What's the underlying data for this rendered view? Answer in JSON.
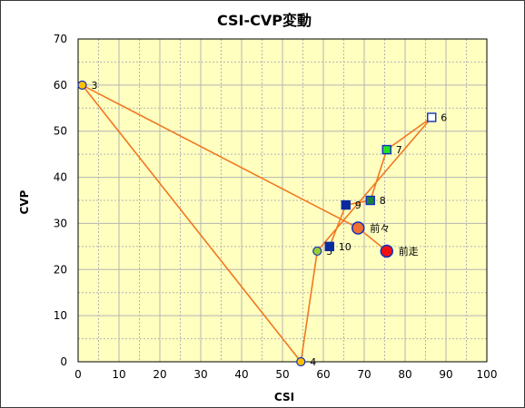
{
  "chart_data": {
    "type": "scatter",
    "title": "CSI-CVP変動",
    "xlabel": "CSI",
    "ylabel": "CVP",
    "xlim": [
      0,
      100
    ],
    "ylim": [
      0,
      70
    ],
    "xticks": [
      0,
      10,
      20,
      30,
      40,
      50,
      60,
      70,
      80,
      90,
      100
    ],
    "yticks": [
      0,
      10,
      20,
      30,
      40,
      50,
      60,
      70
    ],
    "grid": true,
    "line_color": "#F07820",
    "plot_background": "#FFFFC0",
    "grid_color": "#B4B4B4",
    "path_order": [
      "前走",
      "前々",
      "3",
      "4",
      "5",
      "6",
      "7",
      "8",
      "9",
      "10"
    ],
    "points": [
      {
        "label": "前走",
        "x": 75.5,
        "y": 24,
        "marker": "circle-large",
        "fill": "#F01010",
        "stroke": "#1030C0"
      },
      {
        "label": "前々",
        "x": 68.5,
        "y": 29,
        "marker": "circle-large",
        "fill": "#F07030",
        "stroke": "#1030C0"
      },
      {
        "label": "3",
        "x": 1,
        "y": 60,
        "marker": "circle",
        "fill": "#FFC000",
        "stroke": "#1030C0"
      },
      {
        "label": "4",
        "x": 54.5,
        "y": 0,
        "marker": "circle",
        "fill": "#FFC000",
        "stroke": "#1030C0"
      },
      {
        "label": "5",
        "x": 58.5,
        "y": 24,
        "marker": "circle",
        "fill": "#9ACD32",
        "stroke": "#1030C0"
      },
      {
        "label": "6",
        "x": 86.5,
        "y": 53,
        "marker": "square",
        "fill": "#FFFFFF",
        "stroke": "#1030C0"
      },
      {
        "label": "7",
        "x": 75.5,
        "y": 46,
        "marker": "square",
        "fill": "#22E022",
        "stroke": "#1030C0"
      },
      {
        "label": "8",
        "x": 71.5,
        "y": 35,
        "marker": "square",
        "fill": "#1E8040",
        "stroke": "#1030C0"
      },
      {
        "label": "9",
        "x": 65.5,
        "y": 34,
        "marker": "square",
        "fill": "#0A2AA0",
        "stroke": "#0A2AA0"
      },
      {
        "label": "10",
        "x": 61.5,
        "y": 25,
        "marker": "square",
        "fill": "#0A2AA0",
        "stroke": "#0A2AA0"
      }
    ]
  }
}
